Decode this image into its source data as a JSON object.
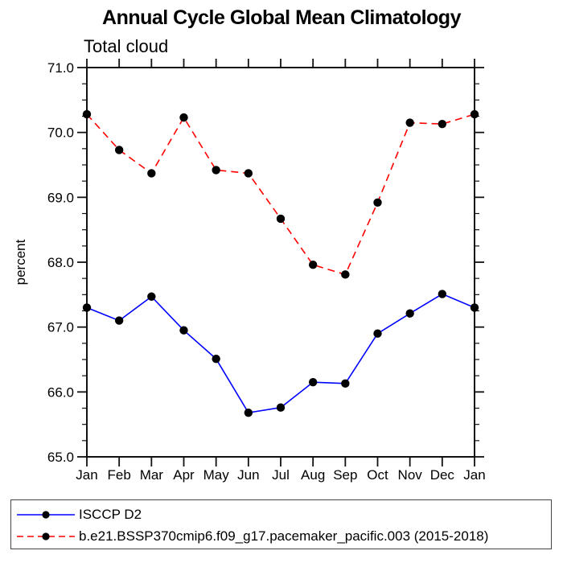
{
  "chart_data": {
    "type": "line",
    "title": "Annual Cycle Global Mean Climatology",
    "subtitle": "Total cloud",
    "ylabel": "percent",
    "xlabel": "",
    "categories": [
      "Jan",
      "Feb",
      "Mar",
      "Apr",
      "May",
      "Jun",
      "Jul",
      "Aug",
      "Sep",
      "Oct",
      "Nov",
      "Dec",
      "Jan"
    ],
    "ylim": [
      65.0,
      71.0
    ],
    "y_tick_labels": [
      "71.0",
      "70.0",
      "69.0",
      "68.0",
      "67.0",
      "66.0",
      "65.0"
    ],
    "y_major_step": 1.0,
    "y_minor_step": 0.25,
    "grid": false,
    "legend_position": "bottom",
    "axis_color": "#111111",
    "series": [
      {
        "name": "ISCCP D2",
        "color": "#0000ff",
        "style": "solid",
        "marker": "circle",
        "marker_color": "#000000",
        "values": [
          67.3,
          67.1,
          67.47,
          66.95,
          66.51,
          65.68,
          65.76,
          66.15,
          66.13,
          66.9,
          67.21,
          67.51,
          67.3
        ]
      },
      {
        "name": "b.e21.BSSP370cmip6.f09_g17.pacemaker_pacific.003 (2015-2018)",
        "color": "#ff0000",
        "style": "dashed",
        "marker": "circle",
        "marker_color": "#000000",
        "values": [
          70.28,
          69.73,
          69.37,
          70.23,
          69.42,
          69.37,
          68.67,
          67.96,
          67.81,
          68.92,
          70.15,
          70.13,
          70.28
        ]
      }
    ]
  }
}
